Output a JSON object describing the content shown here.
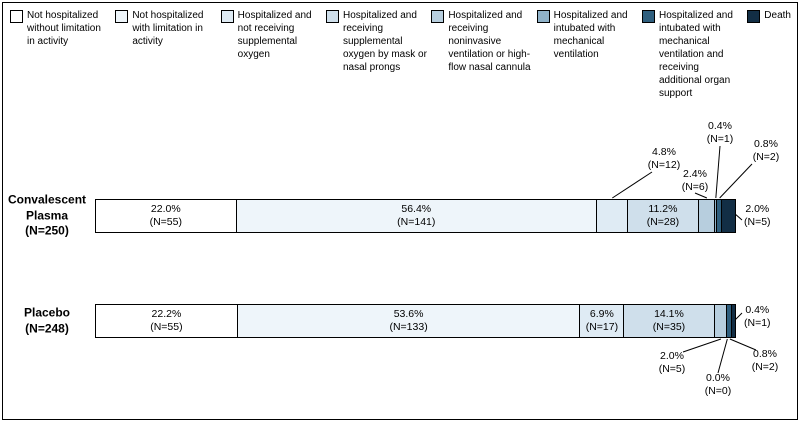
{
  "chart_data": {
    "type": "bar",
    "subtype": "stacked-horizontal",
    "legend_position": "top",
    "xlim": [
      0,
      100
    ],
    "grid": false,
    "categories": [
      "Not hospitalized without limitation in activity",
      "Not hospitalized with limitation in activity",
      "Hospitalized and not receiving supplemental oxygen",
      "Hospitalized and receiving supplemental oxygen by mask or nasal prongs",
      "Hospitalized and receiving noninvasive ventilation or high-flow nasal cannula",
      "Hospitalized and intubated with mechanical ventilation",
      "Hospitalized and intubated with mechanical ventilation and receiving additional organ support",
      "Death"
    ],
    "colors": [
      "#ffffff",
      "#eef5fa",
      "#dfebf4",
      "#cfdfeb",
      "#b7cede",
      "#8fb2c9",
      "#2f5f7e",
      "#122e45"
    ],
    "series": [
      {
        "name": "Convalescent Plasma (N=250)",
        "row_label_lines": [
          "Convalescent",
          "Plasma",
          "(N=250)"
        ],
        "percents": [
          22.0,
          56.4,
          4.8,
          11.2,
          2.4,
          0.4,
          0.8,
          2.0
        ],
        "counts": [
          55,
          141,
          12,
          28,
          6,
          1,
          2,
          5
        ],
        "label_placement": [
          "inside",
          "inside",
          "callout",
          "inside",
          "callout",
          "callout",
          "callout",
          "side"
        ]
      },
      {
        "name": "Placebo (N=248)",
        "row_label_lines": [
          "Placebo",
          "(N=248)"
        ],
        "percents": [
          22.2,
          53.6,
          6.9,
          14.1,
          2.0,
          0.0,
          0.8,
          0.4
        ],
        "counts": [
          55,
          133,
          17,
          35,
          5,
          0,
          2,
          1
        ],
        "label_placement": [
          "inside",
          "inside",
          "inside",
          "inside",
          "callout",
          "callout",
          "callout",
          "side"
        ]
      }
    ],
    "value_label_format": "{pct}% (N={n})"
  }
}
